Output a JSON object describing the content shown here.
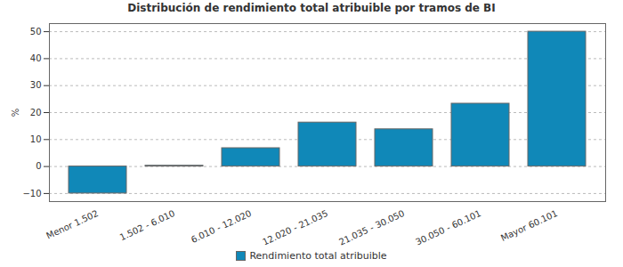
{
  "chart_data": {
    "type": "bar",
    "title": "Distribución de rendimiento total atribuible por tramos de BI",
    "y_label": "%",
    "categories": [
      "Menor 1.502",
      "1.502 - 6.010",
      "6.010 - 12.020",
      "12.020 - 21.035",
      "21.035 - 30.050",
      "30.050 - 60.101",
      "Mayor 60.101"
    ],
    "series": [
      {
        "name": "Rendimiento total atribuible",
        "color": "#1088b8",
        "values": [
          -10,
          0.3,
          6.8,
          16.3,
          13.8,
          23.3,
          50
        ]
      }
    ],
    "ylim": [
      -13,
      53
    ],
    "yticks": [
      -10,
      0,
      10,
      20,
      30,
      40,
      50
    ],
    "grid": true,
    "legend": "bottom"
  }
}
